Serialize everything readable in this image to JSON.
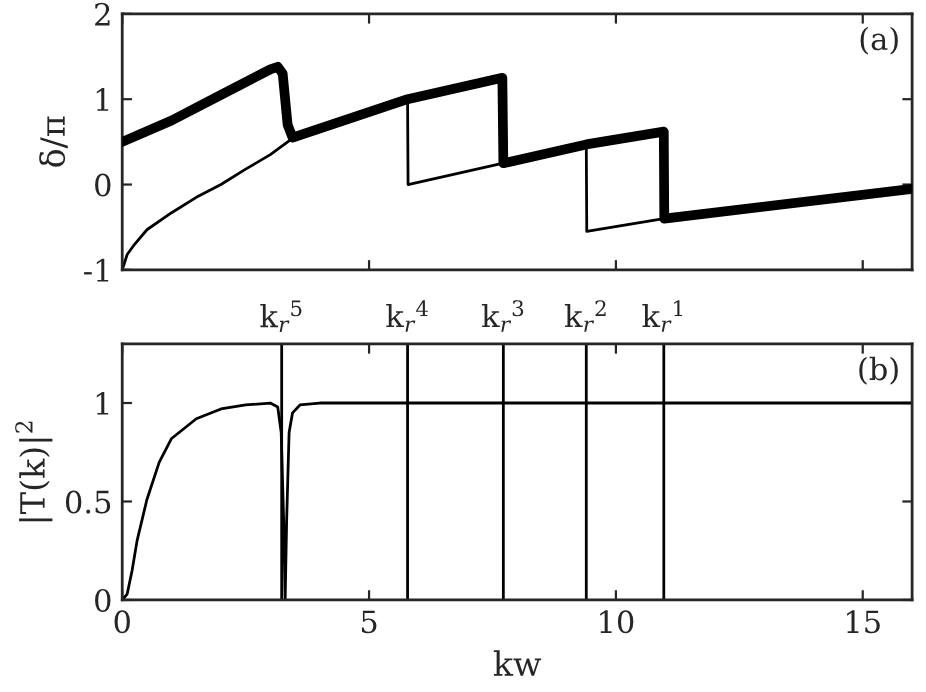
{
  "chart_data": [
    {
      "type": "line",
      "ylabel": "δ/π",
      "annotations": [
        "(a)"
      ],
      "xlim": [
        0,
        16
      ],
      "xticks": [
        0,
        5,
        10,
        15
      ],
      "ylim": [
        -1,
        2
      ],
      "yticks": [
        -1,
        0,
        1,
        2
      ],
      "tick_labels": "y",
      "grid": false,
      "series": [
        {
          "color": "#000000",
          "x": [
            0,
            0.1,
            0.25,
            0.5,
            1,
            1.5,
            2,
            2.5,
            3,
            3.4,
            4,
            5,
            5.78,
            5.79,
            7.72,
            9.4,
            9.41,
            10.97
          ],
          "values": [
            -1,
            -0.82,
            -0.7,
            -0.53,
            -0.33,
            -0.15,
            0.0,
            0.18,
            0.35,
            0.52,
            0.65,
            0.85,
            1.0,
            0.0,
            0.25,
            0.45,
            -0.55,
            -0.4
          ]
        },
        {
          "color": "#000000",
          "x": [
            0,
            1,
            2,
            2.5,
            3,
            3.15,
            3.25,
            3.3,
            3.35,
            3.45,
            5.78,
            7.7,
            7.72,
            9.4,
            10.97,
            10.98,
            16
          ],
          "values": [
            0.5,
            0.75,
            1.05,
            1.2,
            1.35,
            1.38,
            1.3,
            1.0,
            0.7,
            0.55,
            1.0,
            1.25,
            0.25,
            0.47,
            0.62,
            -0.4,
            -0.05
          ]
        }
      ]
    },
    {
      "type": "line",
      "xlabel": "kw",
      "ylabel": "|T(k)|$^{2}$",
      "annotations": [
        "(b)"
      ],
      "xlim": [
        0,
        16
      ],
      "xticks": [
        0,
        5,
        10,
        15
      ],
      "ylim": [
        0,
        1.3
      ],
      "yticks": [
        0,
        0.5,
        1
      ],
      "grid": false,
      "ref_lines": [
        {
          "axis": "x",
          "value": 3.23,
          "label": "k$_{r}$$^{5}$"
        },
        {
          "axis": "x",
          "value": 5.78,
          "label": "k$_{r}$$^{4}$"
        },
        {
          "axis": "x",
          "value": 7.72,
          "label": "k$_{r}$$^{3}$"
        },
        {
          "axis": "x",
          "value": 9.4,
          "label": "k$_{r}$$^{2}$"
        },
        {
          "axis": "x",
          "value": 10.97,
          "label": "k$_{r}$$^{1}$"
        }
      ],
      "series": [
        {
          "color": "#000000",
          "x": [
            0,
            0.1,
            0.2,
            0.3,
            0.5,
            0.75,
            1,
            1.5,
            2,
            2.5,
            3,
            3.15,
            3.22,
            3.27,
            3.3,
            3.33,
            3.38,
            3.45,
            3.6,
            4,
            16
          ],
          "values": [
            0,
            0.03,
            0.15,
            0.3,
            0.51,
            0.7,
            0.82,
            0.92,
            0.97,
            0.99,
            1.0,
            0.98,
            0.85,
            0.4,
            0,
            0.4,
            0.85,
            0.95,
            0.99,
            1.0,
            1.0
          ]
        }
      ]
    }
  ]
}
